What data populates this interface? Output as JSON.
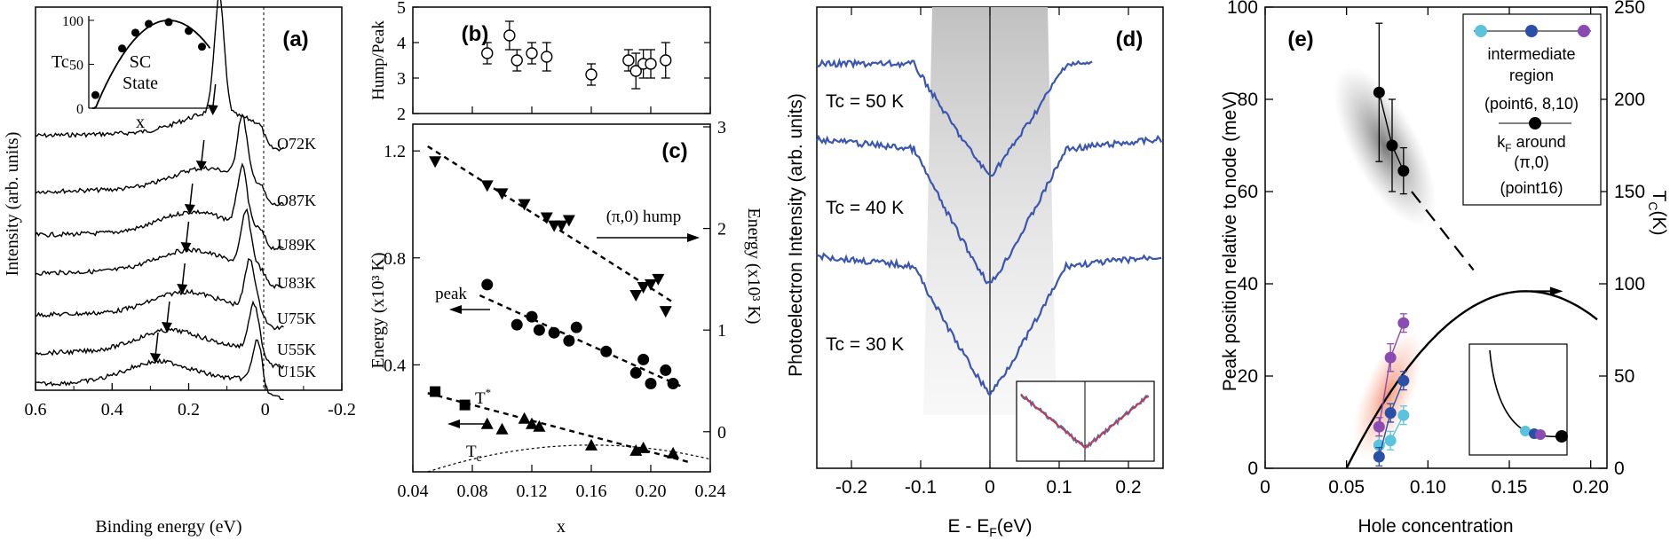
{
  "chart_data": [
    {
      "panel": "a",
      "type": "line",
      "panel_label": "(a)",
      "xlabel": "Binding energy (eV)",
      "ylabel": "Intensity (arb. units)",
      "xlim": [
        0.6,
        -0.2
      ],
      "x_ticks": [
        "0.6",
        "0.4",
        "0.2",
        "0",
        "-0.2"
      ],
      "series": [
        {
          "name": "O72K",
          "peak_energy": 0.12,
          "arrow_energy": 0.13
        },
        {
          "name": "O87K",
          "peak_energy": 0.06,
          "arrow_energy": 0.16
        },
        {
          "name": "U89K",
          "peak_energy": 0.06,
          "arrow_energy": 0.19
        },
        {
          "name": "U83K",
          "peak_energy": 0.05,
          "arrow_energy": 0.2
        },
        {
          "name": "U75K",
          "peak_energy": 0.04,
          "arrow_energy": 0.21
        },
        {
          "name": "U55K",
          "peak_energy": 0.03,
          "arrow_energy": 0.25
        },
        {
          "name": "U15K",
          "peak_energy": 0.02,
          "arrow_energy": 0.28
        }
      ],
      "inset": {
        "ylabel": "Tc",
        "xlabel": "x",
        "y_ticks": [
          "0",
          "50",
          "100"
        ],
        "annotation_1": "SC",
        "annotation_2": "State",
        "points": [
          [
            0.05,
            15
          ],
          [
            0.09,
            68
          ],
          [
            0.11,
            86
          ],
          [
            0.13,
            96
          ],
          [
            0.16,
            98
          ],
          [
            0.19,
            88
          ],
          [
            0.21,
            70
          ]
        ]
      }
    },
    {
      "panel": "b",
      "type": "scatter",
      "panel_label": "(b)",
      "ylabel": "Hump/Peak",
      "ylim": [
        2,
        5
      ],
      "y_ticks": [
        "2",
        "3",
        "4",
        "5"
      ],
      "points": [
        {
          "x": 0.09,
          "y": 3.7,
          "err": 0.3
        },
        {
          "x": 0.105,
          "y": 4.2,
          "err": 0.4
        },
        {
          "x": 0.11,
          "y": 3.5,
          "err": 0.3
        },
        {
          "x": 0.12,
          "y": 3.7,
          "err": 0.3
        },
        {
          "x": 0.13,
          "y": 3.6,
          "err": 0.4
        },
        {
          "x": 0.16,
          "y": 3.1,
          "err": 0.3
        },
        {
          "x": 0.185,
          "y": 3.5,
          "err": 0.3
        },
        {
          "x": 0.19,
          "y": 3.2,
          "err": 0.5
        },
        {
          "x": 0.195,
          "y": 3.4,
          "err": 0.4
        },
        {
          "x": 0.2,
          "y": 3.4,
          "err": 0.4
        },
        {
          "x": 0.21,
          "y": 3.5,
          "err": 0.5
        }
      ]
    },
    {
      "panel": "c",
      "type": "scatter",
      "panel_label": "(c)",
      "xlabel": "x",
      "ylabel": "Energy (x10³ K)",
      "ylabel_right": "Energy (x10³ K)",
      "xlim": [
        0.04,
        0.24
      ],
      "ylim": [
        0,
        1.3
      ],
      "x_ticks": [
        "0.04",
        "0.08",
        "0.12",
        "0.16",
        "0.20",
        "0.24"
      ],
      "y_ticks": [
        "0.4",
        "0.8",
        "1.2"
      ],
      "y_ticks_right": [
        "0",
        "1",
        "2",
        "3"
      ],
      "annotations": {
        "hump": "(π,0) hump",
        "peak": "peak",
        "tstar": "T",
        "tstar_sup": "*",
        "tc": "T",
        "tc_sub": "c"
      },
      "series": [
        {
          "name": "(π,0) hump",
          "marker": "triangle-down",
          "points": [
            [
              0.055,
              1.16
            ],
            [
              0.09,
              1.07
            ],
            [
              0.1,
              1.04
            ],
            [
              0.115,
              1.0
            ],
            [
              0.13,
              0.95
            ],
            [
              0.135,
              0.92
            ],
            [
              0.14,
              0.92
            ],
            [
              0.145,
              0.94
            ],
            [
              0.195,
              0.69
            ],
            [
              0.2,
              0.7
            ],
            [
              0.19,
              0.66
            ],
            [
              0.205,
              0.72
            ],
            [
              0.21,
              0.6
            ]
          ]
        },
        {
          "name": "peak",
          "marker": "circle",
          "points": [
            [
              0.09,
              0.7
            ],
            [
              0.11,
              0.55
            ],
            [
              0.12,
              0.58
            ],
            [
              0.125,
              0.53
            ],
            [
              0.135,
              0.52
            ],
            [
              0.145,
              0.49
            ],
            [
              0.15,
              0.54
            ],
            [
              0.17,
              0.45
            ],
            [
              0.19,
              0.37
            ],
            [
              0.195,
              0.42
            ],
            [
              0.2,
              0.33
            ],
            [
              0.21,
              0.38
            ],
            [
              0.215,
              0.33
            ]
          ]
        },
        {
          "name": "T*",
          "marker": "square",
          "points": [
            [
              0.055,
              0.3
            ],
            [
              0.075,
              0.25
            ]
          ]
        },
        {
          "name": "Tc",
          "marker": "triangle-up",
          "points": [
            [
              0.09,
              0.18
            ],
            [
              0.1,
              0.16
            ],
            [
              0.115,
              0.2
            ],
            [
              0.12,
              0.18
            ],
            [
              0.125,
              0.17
            ],
            [
              0.16,
              0.1
            ],
            [
              0.19,
              0.08
            ],
            [
              0.195,
              0.09
            ],
            [
              0.215,
              0.07
            ]
          ]
        }
      ]
    },
    {
      "panel": "d",
      "type": "line",
      "panel_label": "(d)",
      "xlabel": "E - E",
      "xlabel_sub": "F",
      "xlabel_unit": "(eV)",
      "ylabel": "Photoelectron Intensity (arb. units)",
      "xlim": [
        -0.25,
        0.25
      ],
      "x_ticks": [
        "-0.2",
        "-0.1",
        "0",
        "0.1",
        "0.2"
      ],
      "series": [
        {
          "name": "Tc = 50 K",
          "xmax": 0.15,
          "edge_level": 0.0,
          "depth": 0.45
        },
        {
          "name": "Tc = 40 K",
          "xmax": 0.25,
          "edge_level": 0.0,
          "depth": 0.6
        },
        {
          "name": "Tc = 30 K",
          "xmax": 0.25,
          "edge_level": 0.0,
          "depth": 0.55
        }
      ]
    },
    {
      "panel": "e",
      "type": "scatter",
      "panel_label": "(e)",
      "xlabel": "Hole concentration",
      "ylabel": "Peak position relative to node (meV)",
      "ylabel_right": "T",
      "ylabel_right_sub": "C",
      "ylabel_right_unit": "(K)",
      "xlim": [
        0,
        0.21
      ],
      "ylim": [
        0,
        100
      ],
      "ylim_right": [
        0,
        250
      ],
      "x_ticks": [
        "0",
        "0.05",
        "0.10",
        "0.15",
        "0.20"
      ],
      "y_ticks": [
        "0",
        "20",
        "40",
        "60",
        "80",
        "100"
      ],
      "y_ticks_right": [
        "0",
        "50",
        "100",
        "150",
        "200",
        "250"
      ],
      "legend": {
        "position": "top-right",
        "entry1_line1": "intermediate",
        "entry1_line2": "region",
        "entry1_line3": "(point6, 8,10)",
        "entry2_line1": "k",
        "entry2_sub": "F",
        "entry2_line1_rest": " around",
        "entry2_line2": "(π,0)",
        "entry2_line3": "(point16)"
      },
      "series": [
        {
          "name": "kF around (π,0) (point16)",
          "color": "#000000",
          "points": [
            [
              0.07,
              81.5,
              15
            ],
            [
              0.078,
              70,
              10
            ],
            [
              0.085,
              64.5,
              5
            ]
          ]
        },
        {
          "name": "point6",
          "color": "#5bc4dc",
          "points": [
            [
              0.07,
              5,
              2
            ],
            [
              0.077,
              6,
              2
            ],
            [
              0.085,
              11.5,
              2
            ]
          ]
        },
        {
          "name": "point8",
          "color": "#2a4fa6",
          "points": [
            [
              0.07,
              2.5,
              2
            ],
            [
              0.077,
              12,
              2
            ],
            [
              0.085,
              19,
              2
            ]
          ]
        },
        {
          "name": "point10",
          "color": "#8a4bb3",
          "points": [
            [
              0.07,
              9,
              2
            ],
            [
              0.077,
              24,
              3
            ],
            [
              0.085,
              31.5,
              2
            ]
          ]
        }
      ],
      "tc_dome": {
        "x_start": 0.05,
        "x_peak": 0.16,
        "tc_max": 96
      }
    }
  ]
}
